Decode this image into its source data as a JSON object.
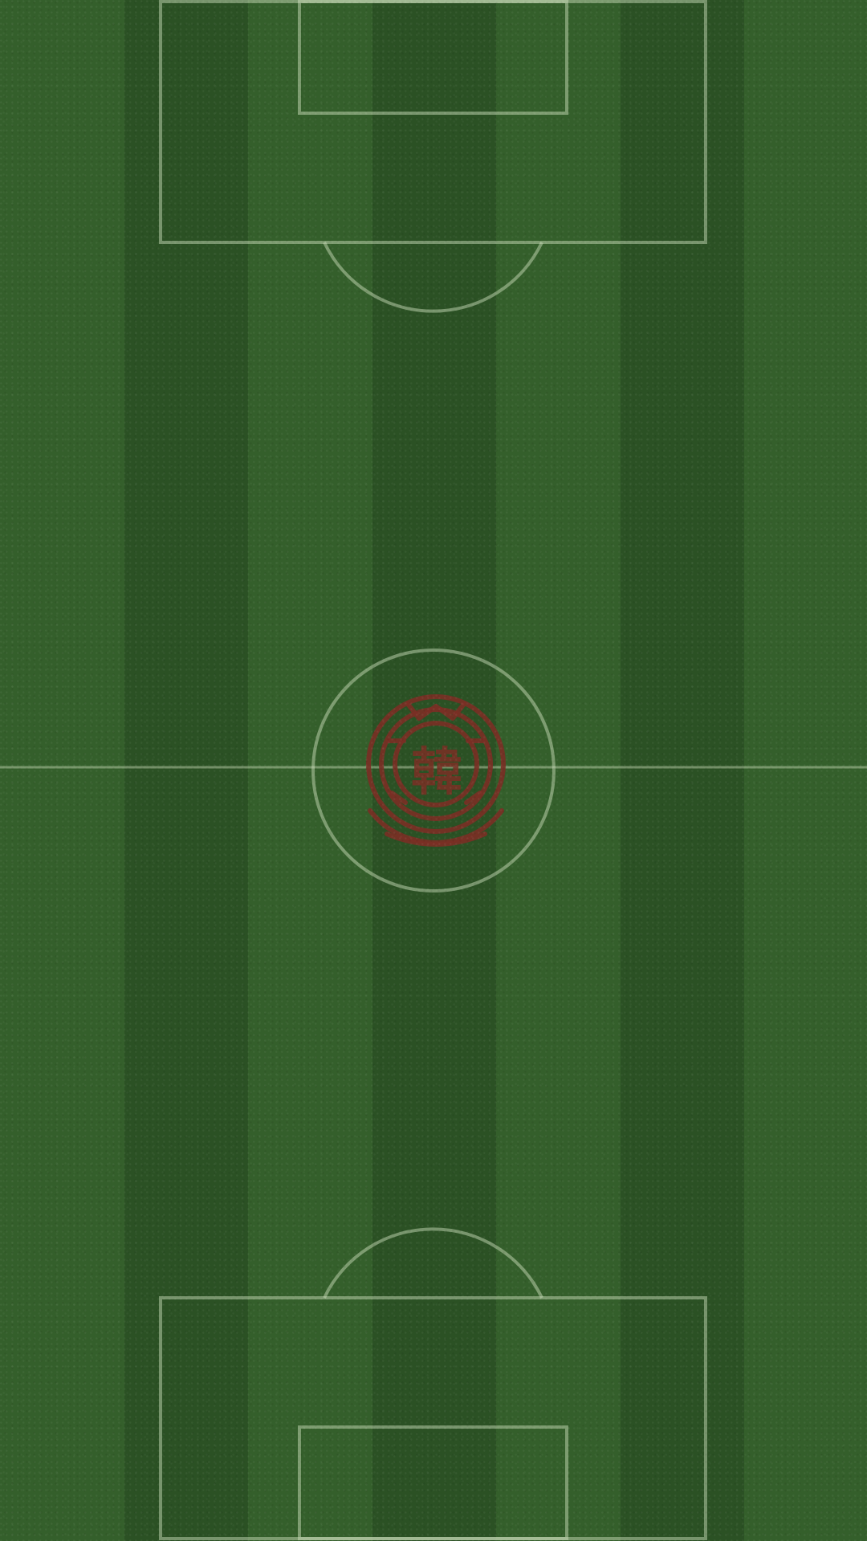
{
  "scene": {
    "type": "soccer-pitch",
    "orientation": "portrait",
    "visible_text": []
  },
  "colors": {
    "grass_light": "#345f2b",
    "grass_dark": "#2b5124",
    "field_lines": "#d1e2bf",
    "crest": "#7a2f25"
  },
  "elements": {
    "center_logo": {
      "icon": "club-crest-icon",
      "text_glyph": "韓"
    }
  }
}
